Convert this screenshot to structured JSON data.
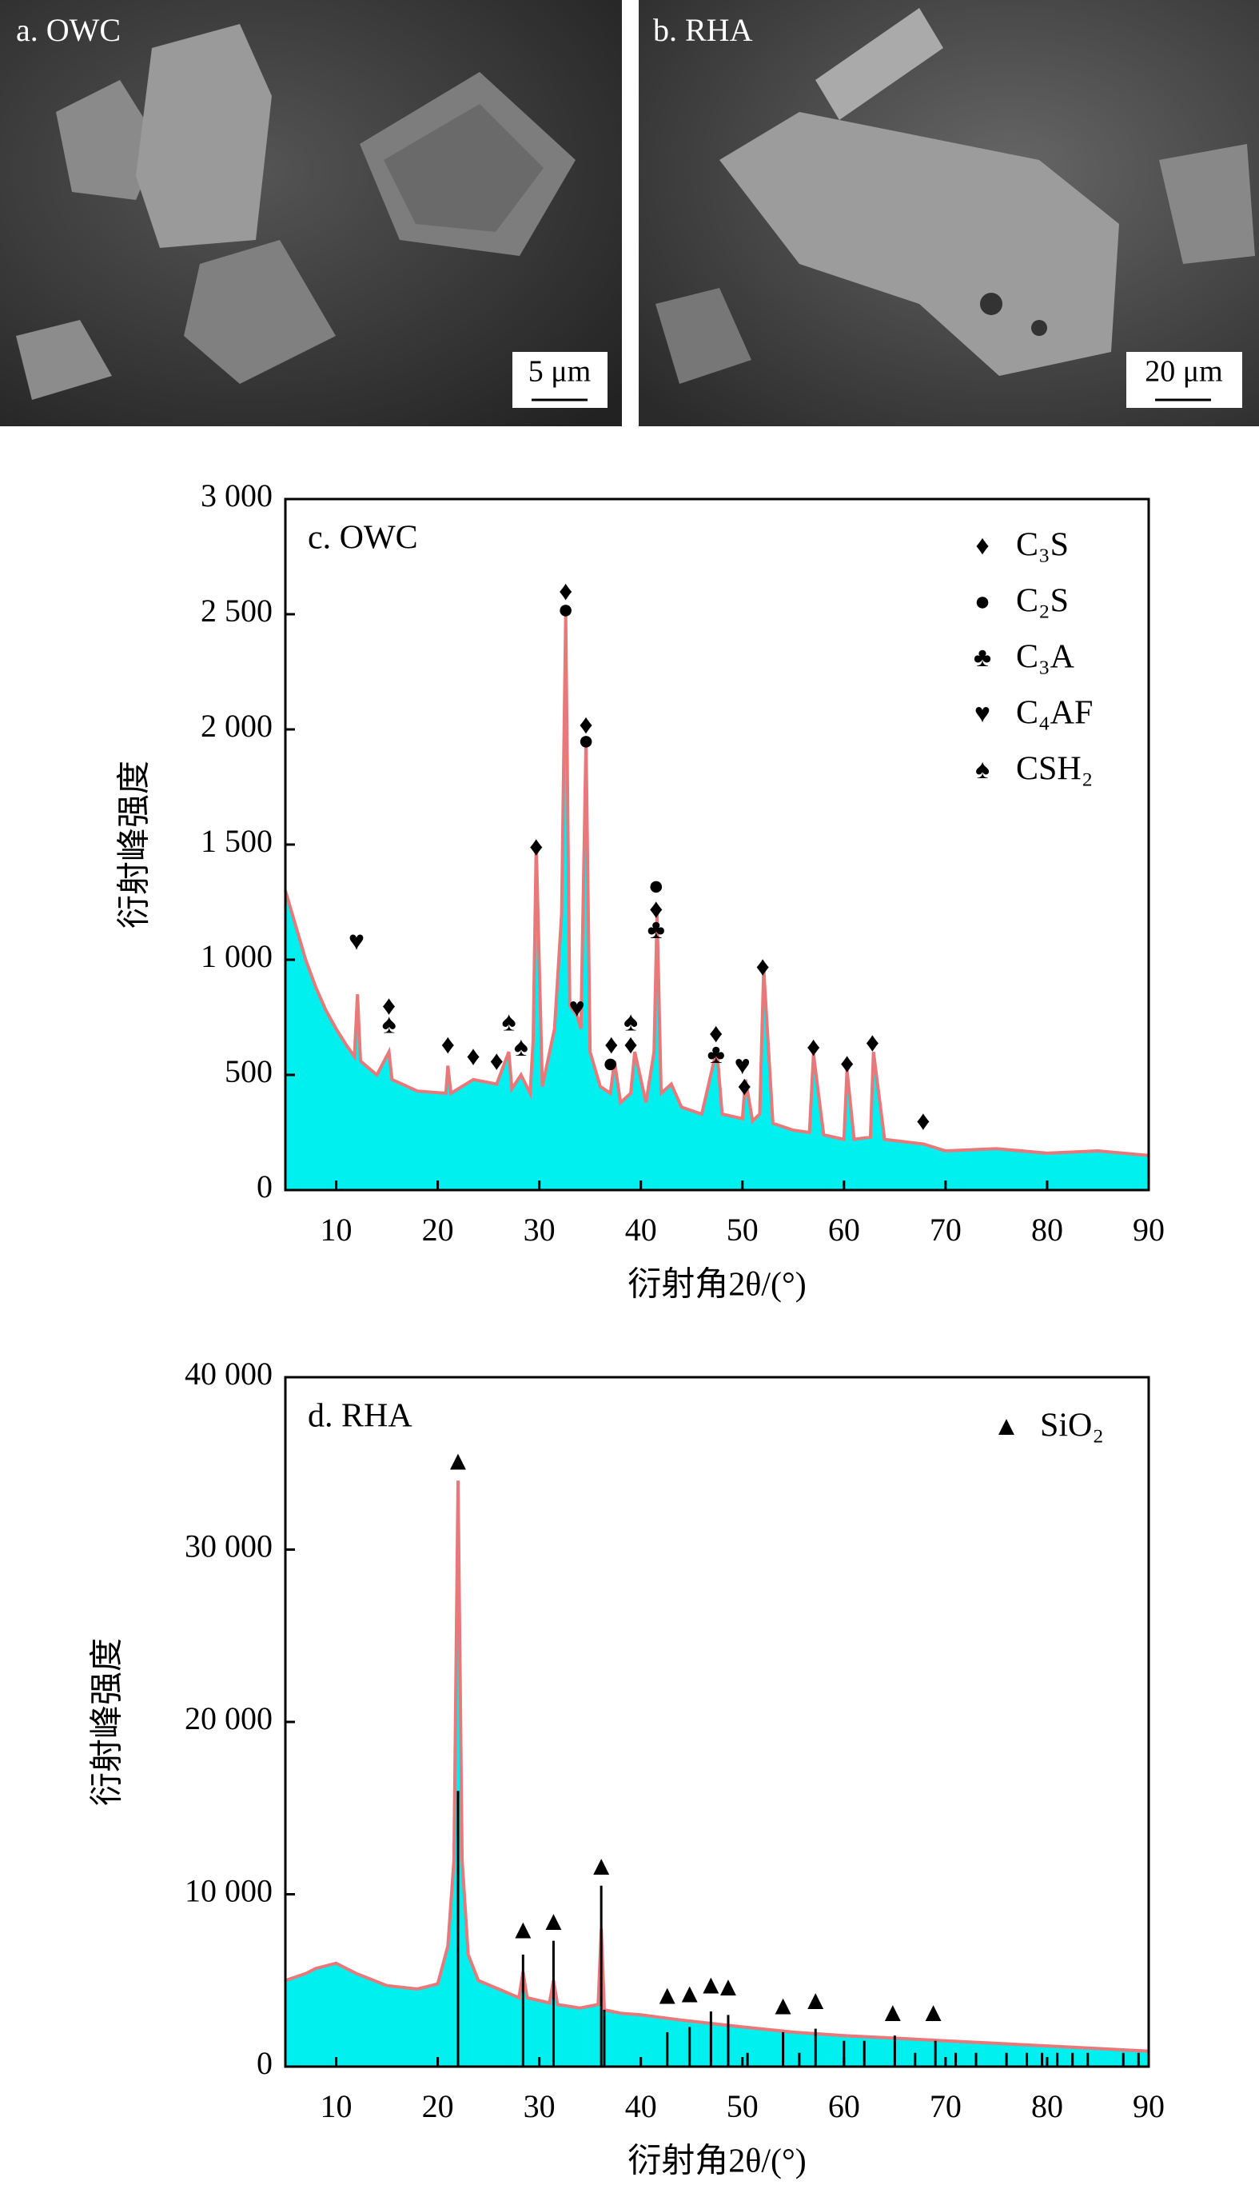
{
  "panels": [
    {
      "label": "a. OWC",
      "scale": "5 μm"
    },
    {
      "label": "b. RHA",
      "scale": "20 μm"
    }
  ],
  "chart_data": [
    {
      "type": "area",
      "annotation": "c. OWC",
      "x_label": "衍射角2θ/(°)",
      "y_label": "衍射峰强度",
      "xlim": [
        5,
        90
      ],
      "xticks": [
        10,
        20,
        30,
        40,
        50,
        60,
        70,
        80,
        90
      ],
      "ylim": [
        0,
        3000
      ],
      "yticks": [
        0,
        {
          "value": 500,
          "label": "500"
        },
        {
          "value": 1000,
          "label": "1 000"
        },
        {
          "value": 1500,
          "label": "1 500"
        },
        {
          "value": 2000,
          "label": "2 000"
        },
        {
          "value": 2500,
          "label": "2 500"
        },
        {
          "value": 3000,
          "label": "3 000"
        }
      ],
      "fill_color": "#00f0f0",
      "line_color": "#e8787a",
      "pattern": {
        "x": [
          5,
          6,
          7,
          8,
          9,
          10,
          11,
          11.8,
          12.1,
          12.4,
          14,
          15.2,
          15.5,
          18,
          20.8,
          21,
          21.3,
          23.5,
          25.8,
          27,
          27.3,
          28.2,
          29.1,
          29.4,
          29.7,
          30.3,
          31.5,
          32.2,
          32.6,
          33,
          33.7,
          34.1,
          34.3,
          34.6,
          35,
          36,
          37,
          37.4,
          38,
          39,
          39.4,
          40.5,
          41.3,
          41.6,
          42,
          43,
          44,
          46,
          47.2,
          47.5,
          48,
          50,
          50.3,
          51,
          51.7,
          52.1,
          53,
          55,
          56.6,
          57,
          58,
          60,
          60.3,
          61,
          62.6,
          62.9,
          64,
          67.8,
          70,
          75,
          80,
          85,
          90
        ],
        "values": [
          1300,
          1150,
          1000,
          880,
          780,
          700,
          630,
          580,
          850,
          560,
          500,
          600,
          480,
          430,
          420,
          540,
          420,
          480,
          460,
          600,
          440,
          500,
          420,
          650,
          1500,
          450,
          700,
          1200,
          2500,
          800,
          760,
          700,
          1200,
          1950,
          600,
          450,
          420,
          560,
          380,
          420,
          600,
          380,
          600,
          1200,
          420,
          460,
          360,
          330,
          560,
          600,
          330,
          310,
          480,
          300,
          330,
          960,
          290,
          260,
          250,
          590,
          240,
          220,
          520,
          220,
          230,
          600,
          220,
          200,
          170,
          180,
          160,
          170,
          150
        ]
      },
      "series": [
        {
          "name": "C₃S",
          "symbol": "♦",
          "x": [
            15.2,
            21,
            23.5,
            25.8,
            29.7,
            32.6,
            34.6,
            37.1,
            39,
            41.5,
            47.4,
            50.2,
            52,
            57,
            60.3,
            62.8,
            67.8
          ],
          "y": [
            790,
            620,
            570,
            550,
            1480,
            2590,
            2010,
            620,
            620,
            1210,
            670,
            440,
            960,
            610,
            540,
            630,
            290
          ]
        },
        {
          "name": "C₂S",
          "symbol": "●",
          "x": [
            32.6,
            34.6,
            37,
            41.5
          ],
          "y": [
            2510,
            1940,
            540,
            1310
          ]
        },
        {
          "name": "C₃A",
          "symbol": "♣",
          "x": [
            41.5,
            47.4
          ],
          "y": [
            1120,
            580
          ]
        },
        {
          "name": "C₄AF",
          "symbol": "♥",
          "x": [
            12,
            33.7,
            50
          ],
          "y": [
            1070,
            780,
            530
          ]
        },
        {
          "name": "CSH₂",
          "symbol": "♠",
          "x": [
            15.2,
            27,
            28.2,
            39
          ],
          "y": [
            710,
            720,
            610,
            720
          ]
        }
      ]
    },
    {
      "type": "area",
      "annotation": "d. RHA",
      "x_label": "衍射角2θ/(°)",
      "y_label": "衍射峰强度",
      "xlim": [
        5,
        90
      ],
      "xticks": [
        10,
        20,
        30,
        40,
        50,
        60,
        70,
        80,
        90
      ],
      "ylim": [
        0,
        40000
      ],
      "yticks": [
        0,
        {
          "value": 10000,
          "label": "10 000"
        },
        {
          "value": 20000,
          "label": "20 000"
        },
        {
          "value": 30000,
          "label": "30 000"
        },
        {
          "value": 40000,
          "label": "40 000"
        }
      ],
      "fill_color": "#00f0f0",
      "line_color": "#e8787a",
      "pattern": {
        "x": [
          5,
          7,
          8,
          10,
          12,
          15,
          18,
          20,
          21,
          21.6,
          22,
          22.4,
          23,
          24,
          26,
          28,
          28.4,
          28.8,
          31,
          31.4,
          31.8,
          34,
          35.8,
          36.1,
          36.4,
          38,
          40,
          44,
          47,
          50,
          55,
          60,
          65,
          70,
          75,
          80,
          85,
          90
        ],
        "values": [
          5000,
          5400,
          5700,
          6000,
          5400,
          4700,
          4500,
          4800,
          7000,
          12000,
          34000,
          12000,
          6500,
          5000,
          4500,
          4000,
          5500,
          4000,
          3700,
          5000,
          3600,
          3400,
          3600,
          8000,
          3300,
          3100,
          3000,
          2700,
          2500,
          2300,
          2000,
          1800,
          1650,
          1500,
          1350,
          1200,
          1050,
          900
        ]
      },
      "reference_lines": {
        "x": [
          22,
          28.4,
          31.4,
          36.1,
          36.4,
          42.6,
          44.8,
          46.9,
          48.6,
          50.5,
          54,
          55.6,
          57.2,
          60,
          62,
          65,
          67,
          69,
          71,
          73,
          76,
          78,
          79.5,
          81,
          82.5,
          84,
          87.5,
          89
        ],
        "values": [
          16000,
          6500,
          7300,
          10500,
          3300,
          2000,
          2300,
          3200,
          3000,
          800,
          2000,
          800,
          2200,
          1500,
          1500,
          1800,
          800,
          1500,
          800,
          800,
          800,
          800,
          800,
          800,
          800,
          800,
          800,
          800
        ]
      },
      "series": [
        {
          "name": "SiO₂",
          "symbol": "▲",
          "x": [
            22,
            28.4,
            31.4,
            36.1,
            42.6,
            44.8,
            46.9,
            48.6,
            54,
            57.2,
            64.8,
            68.8
          ],
          "y": [
            35000,
            7800,
            8300,
            11500,
            4000,
            4100,
            4600,
            4500,
            3400,
            3700,
            3000,
            3000
          ]
        }
      ]
    }
  ]
}
